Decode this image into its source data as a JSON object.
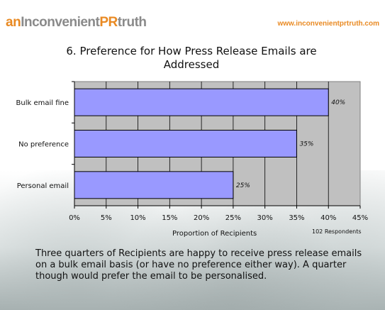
{
  "header": {
    "logo_part1": "an",
    "logo_part2": "Inconvenient",
    "logo_part3": "PR",
    "logo_part4": "truth",
    "site_url": "www.inconvenientprtruth.com"
  },
  "chart_data": {
    "type": "bar",
    "orientation": "horizontal",
    "title": "6. Preference for How Press Release Emails are Addressed",
    "categories": [
      "Bulk email fine",
      "No preference",
      "Personal email"
    ],
    "values": [
      40,
      35,
      25
    ],
    "data_labels": [
      "40%",
      "35%",
      "25%"
    ],
    "xlabel": "Proportion of Recipients",
    "xlim": [
      0,
      45
    ],
    "xticks": [
      "0%",
      "5%",
      "10%",
      "15%",
      "20%",
      "25%",
      "30%",
      "35%",
      "40%",
      "45%"
    ],
    "grid": true,
    "bar_color": "#9999ff",
    "plot_background": "#c0c0c0"
  },
  "note": "102 Respondents",
  "caption": "Three quarters of Recipients are happy to receive press release emails on a bulk email basis (or have no preference either way). A quarter though would prefer the email to be personalised."
}
